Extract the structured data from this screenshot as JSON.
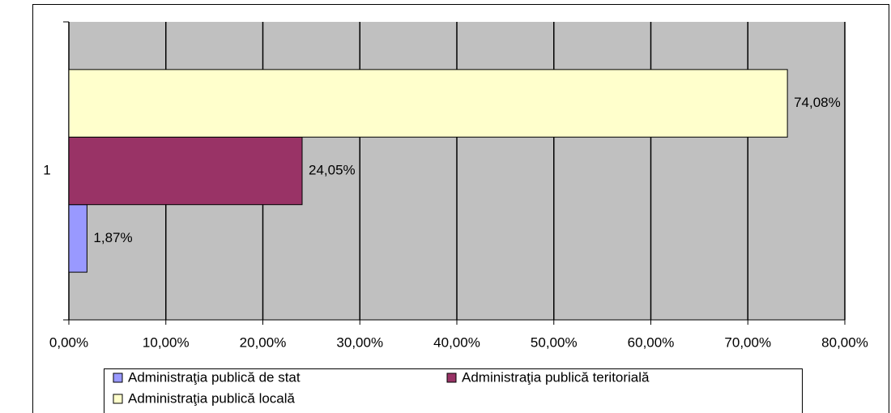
{
  "chart_data": {
    "type": "bar",
    "orientation": "horizontal",
    "categories": [
      "1"
    ],
    "series": [
      {
        "name": "Administraţia publică de stat",
        "color": "#9999ff",
        "values": [
          1.87
        ],
        "value_labels": [
          "1,87%"
        ]
      },
      {
        "name": "Administraţia publică teritorială",
        "color": "#993366",
        "values": [
          24.05
        ],
        "value_labels": [
          "24,05%"
        ]
      },
      {
        "name": "Administraţia publică locală",
        "color": "#ffffcc",
        "values": [
          74.08
        ],
        "value_labels": [
          "74,08%"
        ]
      }
    ],
    "xlim": [
      0,
      80
    ],
    "xticks": [
      {
        "value": 0,
        "label": "0,00%"
      },
      {
        "value": 10,
        "label": "10,00%"
      },
      {
        "value": 20,
        "label": "20,00%"
      },
      {
        "value": 30,
        "label": "30,00%"
      },
      {
        "value": 40,
        "label": "40,00%"
      },
      {
        "value": 50,
        "label": "50,00%"
      },
      {
        "value": 60,
        "label": "60,00%"
      },
      {
        "value": 70,
        "label": "70,00%"
      },
      {
        "value": 80,
        "label": "80,00%"
      }
    ],
    "grid": true,
    "plot_background": "#c0c0c0"
  }
}
